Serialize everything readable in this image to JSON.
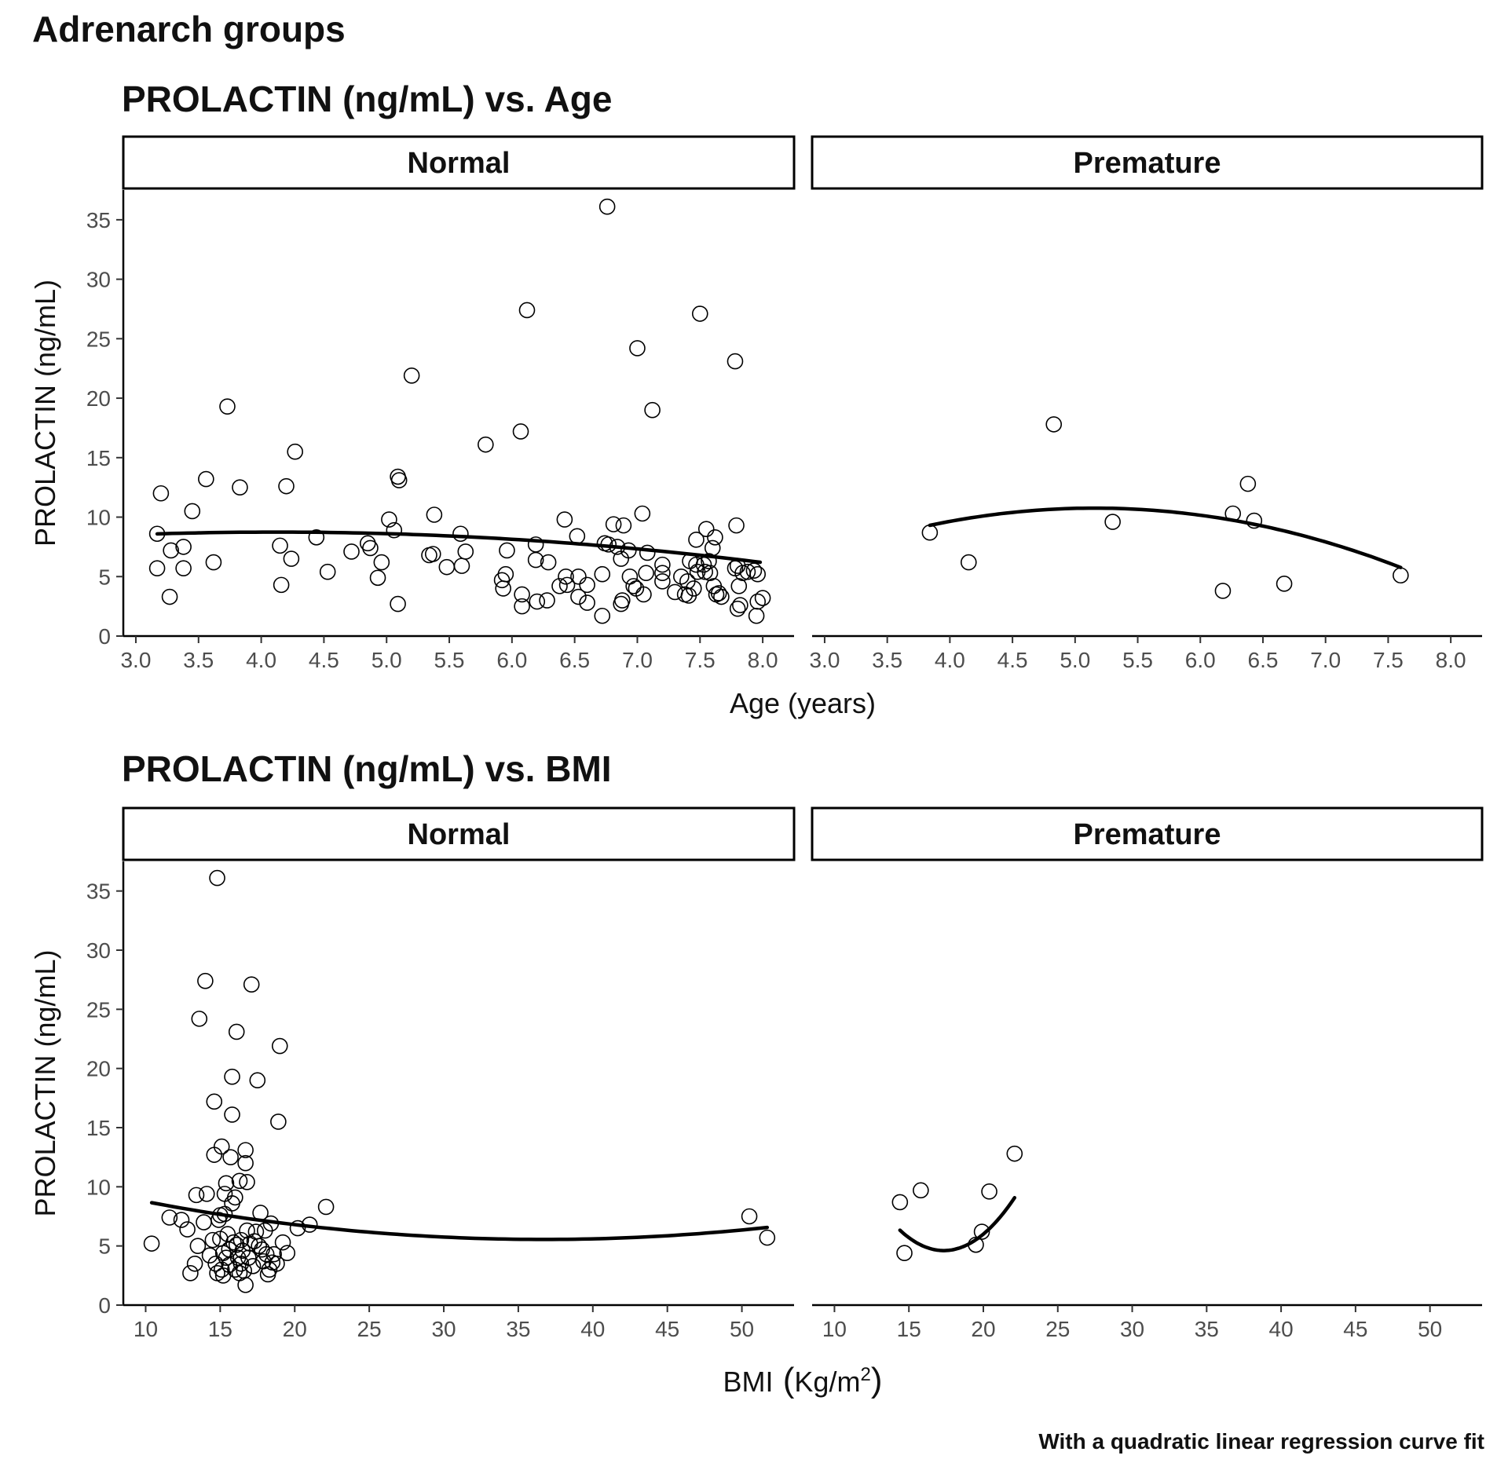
{
  "figure": {
    "title": "Adrenarch groups",
    "caption": "With a quadratic linear regression curve fit"
  },
  "chart_data": [
    {
      "type": "scatter",
      "title": "PROLACTIN (ng/mL) vs. Age",
      "xlabel": "Age (years)",
      "ylabel": "PROLACTIN (ng/mL)",
      "xlim": [
        2.9,
        8.25
      ],
      "ylim": [
        0,
        37.5
      ],
      "xticks": [
        3.0,
        3.5,
        4.0,
        4.5,
        5.0,
        5.5,
        6.0,
        6.5,
        7.0,
        7.5,
        8.0
      ],
      "xtick_labels": [
        "3.0",
        "3.5",
        "4.0",
        "4.5",
        "5.0",
        "5.5",
        "6.0",
        "6.5",
        "7.0",
        "7.5",
        "8.0"
      ],
      "yticks": [
        0,
        5,
        10,
        15,
        20,
        25,
        30,
        35
      ],
      "ytick_labels": [
        "0",
        "5",
        "10",
        "15",
        "20",
        "25",
        "30",
        "35"
      ],
      "grid": false,
      "panels": [
        {
          "name": "Normal",
          "points": [
            [
              3.17,
              8.6
            ],
            [
              3.17,
              5.7
            ],
            [
              3.2,
              12.0
            ],
            [
              3.27,
              3.3
            ],
            [
              3.28,
              7.2
            ],
            [
              3.38,
              7.5
            ],
            [
              3.38,
              5.7
            ],
            [
              3.45,
              10.5
            ],
            [
              3.56,
              13.2
            ],
            [
              3.62,
              6.2
            ],
            [
              3.73,
              19.3
            ],
            [
              3.83,
              12.5
            ],
            [
              4.15,
              7.6
            ],
            [
              4.16,
              4.3
            ],
            [
              4.2,
              12.6
            ],
            [
              4.24,
              6.5
            ],
            [
              4.27,
              15.5
            ],
            [
              4.44,
              8.3
            ],
            [
              4.53,
              5.4
            ],
            [
              4.72,
              7.1
            ],
            [
              4.85,
              7.8
            ],
            [
              4.87,
              7.4
            ],
            [
              4.93,
              4.9
            ],
            [
              4.96,
              6.2
            ],
            [
              5.02,
              9.8
            ],
            [
              5.06,
              8.9
            ],
            [
              5.09,
              13.4
            ],
            [
              5.1,
              13.1
            ],
            [
              5.09,
              2.7
            ],
            [
              5.2,
              21.9
            ],
            [
              5.34,
              6.8
            ],
            [
              5.37,
              6.9
            ],
            [
              5.38,
              10.2
            ],
            [
              5.48,
              5.8
            ],
            [
              5.6,
              5.9
            ],
            [
              5.59,
              8.6
            ],
            [
              5.63,
              7.1
            ],
            [
              5.79,
              16.1
            ],
            [
              5.92,
              4.7
            ],
            [
              5.93,
              4.0
            ],
            [
              5.95,
              5.2
            ],
            [
              5.96,
              7.2
            ],
            [
              6.07,
              17.2
            ],
            [
              6.08,
              3.5
            ],
            [
              6.08,
              2.5
            ],
            [
              6.12,
              27.4
            ],
            [
              6.19,
              7.7
            ],
            [
              6.19,
              6.4
            ],
            [
              6.2,
              2.9
            ],
            [
              6.28,
              3.0
            ],
            [
              6.29,
              6.2
            ],
            [
              6.38,
              4.2
            ],
            [
              6.42,
              9.8
            ],
            [
              6.43,
              5.0
            ],
            [
              6.44,
              4.3
            ],
            [
              6.52,
              8.4
            ],
            [
              6.53,
              5.0
            ],
            [
              6.53,
              3.3
            ],
            [
              6.6,
              4.3
            ],
            [
              6.6,
              2.8
            ],
            [
              6.72,
              1.7
            ],
            [
              6.72,
              5.2
            ],
            [
              6.74,
              7.8
            ],
            [
              6.76,
              36.1
            ],
            [
              6.77,
              7.7
            ],
            [
              6.81,
              9.4
            ],
            [
              6.84,
              7.5
            ],
            [
              6.87,
              6.5
            ],
            [
              6.87,
              2.7
            ],
            [
              6.88,
              3.0
            ],
            [
              6.89,
              9.3
            ],
            [
              6.93,
              7.2
            ],
            [
              6.94,
              5.0
            ],
            [
              6.97,
              4.2
            ],
            [
              6.99,
              4.0
            ],
            [
              7.0,
              24.2
            ],
            [
              7.04,
              10.3
            ],
            [
              7.05,
              3.5
            ],
            [
              7.07,
              5.3
            ],
            [
              7.08,
              7.0
            ],
            [
              7.12,
              19.0
            ],
            [
              7.2,
              6.0
            ],
            [
              7.2,
              5.3
            ],
            [
              7.2,
              4.6
            ],
            [
              7.3,
              3.7
            ],
            [
              7.35,
              5.0
            ],
            [
              7.38,
              3.5
            ],
            [
              7.4,
              4.6
            ],
            [
              7.41,
              3.4
            ],
            [
              7.42,
              6.3
            ],
            [
              7.45,
              4.0
            ],
            [
              7.47,
              6.0
            ],
            [
              7.47,
              8.1
            ],
            [
              7.48,
              5.4
            ],
            [
              7.5,
              27.1
            ],
            [
              7.53,
              6.0
            ],
            [
              7.54,
              5.4
            ],
            [
              7.55,
              9.0
            ],
            [
              7.57,
              6.3
            ],
            [
              7.58,
              5.3
            ],
            [
              7.6,
              7.4
            ],
            [
              7.61,
              4.2
            ],
            [
              7.62,
              8.3
            ],
            [
              7.63,
              3.5
            ],
            [
              7.65,
              3.6
            ],
            [
              7.67,
              3.3
            ],
            [
              7.78,
              23.1
            ],
            [
              7.78,
              5.7
            ],
            [
              7.79,
              9.3
            ],
            [
              7.8,
              5.9
            ],
            [
              7.8,
              2.3
            ],
            [
              7.81,
              4.2
            ],
            [
              7.82,
              2.6
            ],
            [
              7.84,
              5.3
            ],
            [
              7.88,
              5.4
            ],
            [
              7.93,
              5.5
            ],
            [
              7.95,
              1.7
            ],
            [
              7.96,
              5.2
            ],
            [
              7.96,
              2.9
            ],
            [
              8.0,
              3.2
            ]
          ],
          "fit": {
            "coef": [
              5.86,
              1.4,
              -0.17
            ],
            "x_range": [
              3.17,
              7.98
            ]
          }
        },
        {
          "name": "Premature",
          "points": [
            [
              3.84,
              8.7
            ],
            [
              4.15,
              6.2
            ],
            [
              4.83,
              17.8
            ],
            [
              5.3,
              9.6
            ],
            [
              6.18,
              3.8
            ],
            [
              6.26,
              10.3
            ],
            [
              6.38,
              12.8
            ],
            [
              6.43,
              9.7
            ],
            [
              6.67,
              4.4
            ],
            [
              7.6,
              5.1
            ]
          ],
          "fit": {
            "coef": [
              -11.44,
              8.61,
              -0.835
            ],
            "x_range": [
              3.84,
              7.6
            ]
          }
        }
      ]
    },
    {
      "type": "scatter",
      "title": "PROLACTIN (ng/mL) vs. BMI",
      "xlabel": "BMI",
      "xlabel_unit_base": "Kg/m",
      "xlabel_unit_exp": "2",
      "ylabel": "PROLACTIN (ng/mL)",
      "xlim": [
        8.5,
        53.5
      ],
      "ylim": [
        0,
        37.5
      ],
      "xticks": [
        10,
        15,
        20,
        25,
        30,
        35,
        40,
        45,
        50
      ],
      "xtick_labels": [
        "10",
        "15",
        "20",
        "25",
        "30",
        "35",
        "40",
        "45",
        "50"
      ],
      "yticks": [
        0,
        5,
        10,
        15,
        20,
        25,
        30,
        35
      ],
      "ytick_labels": [
        "0",
        "5",
        "10",
        "15",
        "20",
        "25",
        "30",
        "35"
      ],
      "grid": false,
      "panels": [
        {
          "name": "Normal",
          "points": [
            [
              10.4,
              5.2
            ],
            [
              11.6,
              7.4
            ],
            [
              12.4,
              7.2
            ],
            [
              12.8,
              6.4
            ],
            [
              13.0,
              2.7
            ],
            [
              13.3,
              3.5
            ],
            [
              13.4,
              9.3
            ],
            [
              13.5,
              5.0
            ],
            [
              13.6,
              24.2
            ],
            [
              13.9,
              7.0
            ],
            [
              14.0,
              27.4
            ],
            [
              14.1,
              9.4
            ],
            [
              14.3,
              4.2
            ],
            [
              14.5,
              5.5
            ],
            [
              14.6,
              17.2
            ],
            [
              14.6,
              12.7
            ],
            [
              14.7,
              3.5
            ],
            [
              14.8,
              36.1
            ],
            [
              14.8,
              2.7
            ],
            [
              14.9,
              7.2
            ],
            [
              15.0,
              5.6
            ],
            [
              15.0,
              7.6
            ],
            [
              15.1,
              13.4
            ],
            [
              15.1,
              3.0
            ],
            [
              15.2,
              2.5
            ],
            [
              15.2,
              4.4
            ],
            [
              15.3,
              7.7
            ],
            [
              15.3,
              9.4
            ],
            [
              15.4,
              10.3
            ],
            [
              15.4,
              4.0
            ],
            [
              15.5,
              6.0
            ],
            [
              15.6,
              3.4
            ],
            [
              15.6,
              4.7
            ],
            [
              15.7,
              12.5
            ],
            [
              15.8,
              19.3
            ],
            [
              15.8,
              16.1
            ],
            [
              15.8,
              8.6
            ],
            [
              15.9,
              5.3
            ],
            [
              16.0,
              3.0
            ],
            [
              16.0,
              9.1
            ],
            [
              16.1,
              23.1
            ],
            [
              16.1,
              5.1
            ],
            [
              16.2,
              4.0
            ],
            [
              16.3,
              2.7
            ],
            [
              16.3,
              10.5
            ],
            [
              16.4,
              3.5
            ],
            [
              16.4,
              5.5
            ],
            [
              16.5,
              4.6
            ],
            [
              16.6,
              2.9
            ],
            [
              16.7,
              13.1
            ],
            [
              16.7,
              12.0
            ],
            [
              16.7,
              1.7
            ],
            [
              16.8,
              10.4
            ],
            [
              16.8,
              6.3
            ],
            [
              16.9,
              4.0
            ],
            [
              17.0,
              5.2
            ],
            [
              17.1,
              27.1
            ],
            [
              17.2,
              3.3
            ],
            [
              17.3,
              5.4
            ],
            [
              17.4,
              6.2
            ],
            [
              17.5,
              19.0
            ],
            [
              17.6,
              5.0
            ],
            [
              17.7,
              7.8
            ],
            [
              17.8,
              4.7
            ],
            [
              17.9,
              3.7
            ],
            [
              18.0,
              6.3
            ],
            [
              18.1,
              4.3
            ],
            [
              18.2,
              2.6
            ],
            [
              18.3,
              3.0
            ],
            [
              18.4,
              6.9
            ],
            [
              18.5,
              3.6
            ],
            [
              18.6,
              4.3
            ],
            [
              18.8,
              3.5
            ],
            [
              18.9,
              15.5
            ],
            [
              19.0,
              21.9
            ],
            [
              19.2,
              5.3
            ],
            [
              19.5,
              4.4
            ],
            [
              20.2,
              6.5
            ],
            [
              21.0,
              6.8
            ],
            [
              22.1,
              8.3
            ],
            [
              50.5,
              7.5
            ],
            [
              51.7,
              5.7
            ]
          ],
          "fit": {
            "coef": [
              11.6,
              -0.33,
              0.0045
            ],
            "x_range": [
              10.4,
              51.7
            ]
          }
        },
        {
          "name": "Premature",
          "points": [
            [
              14.4,
              8.7
            ],
            [
              14.7,
              4.4
            ],
            [
              15.8,
              9.7
            ],
            [
              19.5,
              5.1
            ],
            [
              19.9,
              6.2
            ],
            [
              20.4,
              9.6
            ],
            [
              22.1,
              12.8
            ]
          ],
          "fit": {
            "coef": [
              64.2,
              -6.87,
              0.198
            ],
            "x_range": [
              14.4,
              22.1
            ]
          }
        }
      ]
    }
  ]
}
